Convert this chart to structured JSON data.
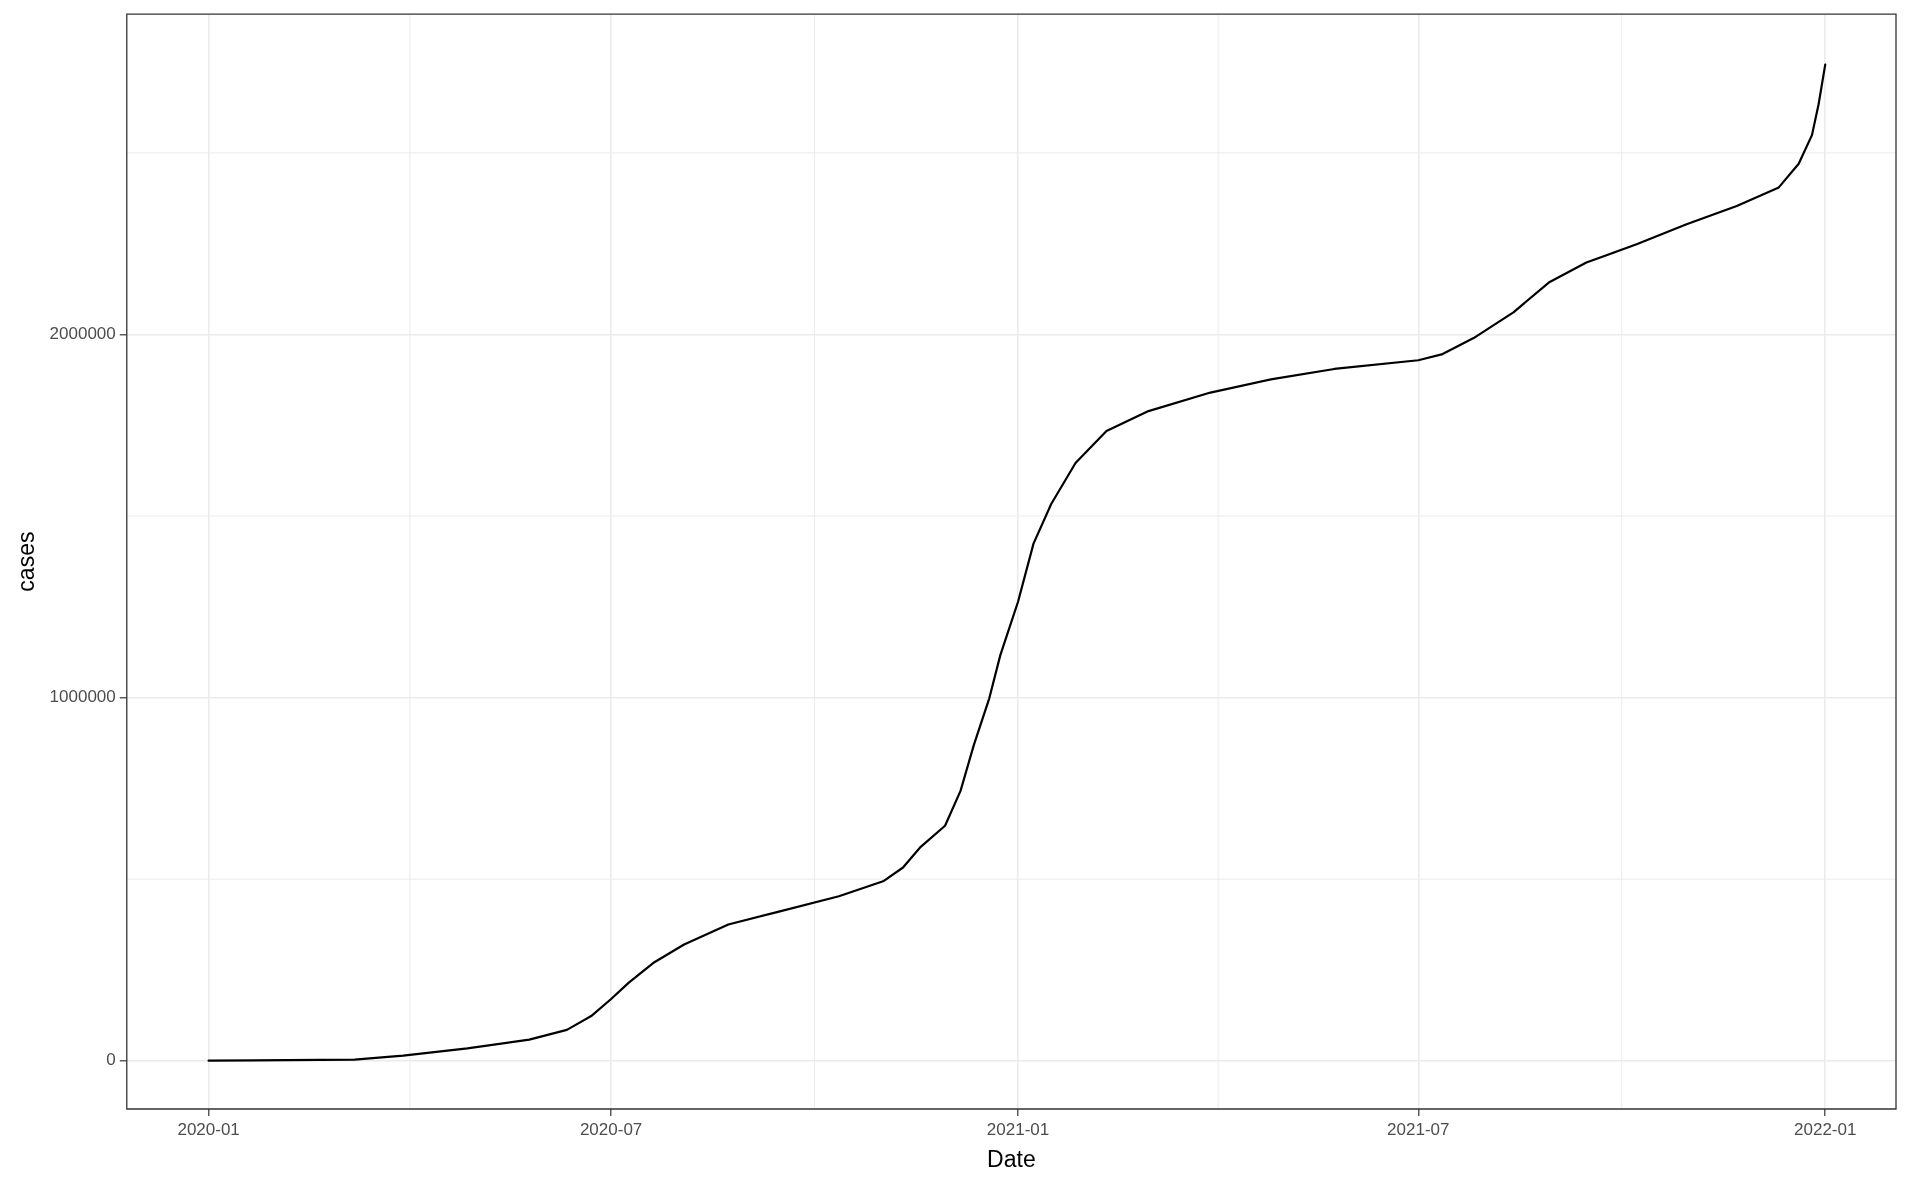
{
  "chart_data": {
    "type": "line",
    "xlabel": "Date",
    "ylabel": "cases",
    "grid": true,
    "legend": false,
    "marker": "none",
    "line_style": "solid",
    "xlim": [
      "2019-11-25",
      "2022-02-02"
    ],
    "xticks": [
      "2020-01",
      "2020-07",
      "2021-01",
      "2021-07",
      "2022-01"
    ],
    "ylim": [
      -133000,
      2882000
    ],
    "yticks": [
      0,
      1000000,
      2000000
    ],
    "series": [
      {
        "color": "#000000",
        "x": [
          "2020-01-01",
          "2020-03-07",
          "2020-03-29",
          "2020-04-27",
          "2020-05-25",
          "2020-06-11",
          "2020-06-22",
          "2020-07-01",
          "2020-07-09",
          "2020-07-20",
          "2020-08-03",
          "2020-08-23",
          "2020-09-14",
          "2020-10-12",
          "2020-11-01",
          "2020-11-10",
          "2020-11-18",
          "2020-11-29",
          "2020-12-06",
          "2020-12-12",
          "2020-12-19",
          "2020-12-24",
          "2021-01-01",
          "2021-01-08",
          "2021-01-16",
          "2021-01-27",
          "2021-02-10",
          "2021-03-01",
          "2021-03-29",
          "2021-04-26",
          "2021-05-24",
          "2021-07-01",
          "2021-07-12",
          "2021-07-26",
          "2021-08-13",
          "2021-08-29",
          "2021-09-15",
          "2021-10-08",
          "2021-10-30",
          "2021-11-22",
          "2021-12-11",
          "2021-12-20",
          "2021-12-26",
          "2021-12-29",
          "2022-01-01"
        ],
        "values": [
          0,
          3000,
          14000,
          34000,
          58000,
          85000,
          123000,
          170000,
          215000,
          269000,
          320000,
          375000,
          409000,
          453000,
          494000,
          532000,
          589000,
          647000,
          743000,
          869000,
          998000,
          1117000,
          1264000,
          1424000,
          1533000,
          1646000,
          1734000,
          1789000,
          1840000,
          1877000,
          1905000,
          1929000,
          1946000,
          1990000,
          2061000,
          2143000,
          2198000,
          2249000,
          2303000,
          2354000,
          2405000,
          2470000,
          2549000,
          2634000,
          2743000
        ]
      }
    ]
  }
}
